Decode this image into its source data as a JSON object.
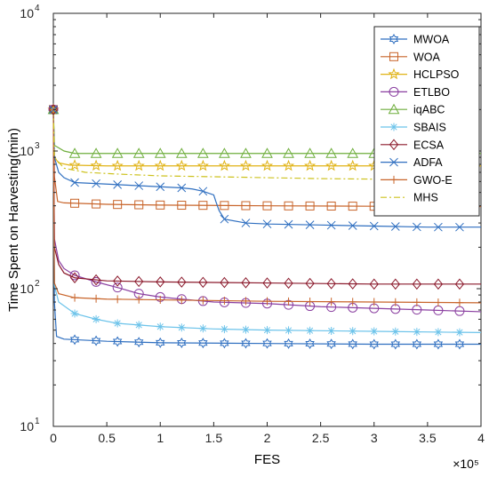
{
  "chart_data": {
    "type": "line",
    "title": "",
    "xlabel": "FES",
    "ylabel": "Time Spent on Harvesting(min)",
    "x_multiplier_label": "×10⁵",
    "x_scale": 100000,
    "xlim": [
      0,
      4
    ],
    "ylim": [
      10,
      10000
    ],
    "y_scale": "log",
    "x_ticks": [
      0,
      0.5,
      1,
      1.5,
      2,
      2.5,
      3,
      3.5,
      4
    ],
    "x_tick_labels": [
      "0",
      "0.5",
      "1",
      "1.5",
      "2",
      "2.5",
      "3",
      "3.5",
      "4"
    ],
    "y_ticks": [
      10,
      100,
      1000,
      10000
    ],
    "y_tick_labels": [
      {
        "base": "10",
        "exp": "1"
      },
      {
        "base": "10",
        "exp": "2"
      },
      {
        "base": "10",
        "exp": "3"
      },
      {
        "base": "10",
        "exp": "4"
      }
    ],
    "grid": false,
    "legend": "top-right",
    "series": [
      {
        "name": "MWOA",
        "color": "#2f6fc0",
        "marker": "hexagram",
        "dash": "",
        "points": [
          [
            0,
            2000
          ],
          [
            0.01,
            80
          ],
          [
            0.03,
            45
          ],
          [
            0.1,
            43
          ],
          [
            0.5,
            41.5
          ],
          [
            1,
            40.5
          ],
          [
            2,
            40
          ],
          [
            3,
            39.5
          ],
          [
            4,
            39.5
          ]
        ]
      },
      {
        "name": "WOA",
        "color": "#c8642a",
        "marker": "square",
        "dash": "",
        "points": [
          [
            0,
            2000
          ],
          [
            0.01,
            650
          ],
          [
            0.04,
            430
          ],
          [
            0.1,
            420
          ],
          [
            0.5,
            410
          ],
          [
            1,
            405
          ],
          [
            2,
            400
          ],
          [
            3,
            397
          ],
          [
            4,
            395
          ]
        ]
      },
      {
        "name": "HCLPSO",
        "color": "#e0b316",
        "marker": "star",
        "dash": "",
        "points": [
          [
            0,
            2000
          ],
          [
            0.01,
            900
          ],
          [
            0.05,
            820
          ],
          [
            0.15,
            790
          ],
          [
            0.5,
            780
          ],
          [
            1,
            780
          ],
          [
            2,
            780
          ],
          [
            3,
            780
          ],
          [
            4,
            780
          ]
        ]
      },
      {
        "name": "ETLBO",
        "color": "#8a3fa0",
        "marker": "circle",
        "dash": "",
        "points": [
          [
            0,
            2000
          ],
          [
            0.01,
            230
          ],
          [
            0.05,
            160
          ],
          [
            0.1,
            140
          ],
          [
            0.2,
            125
          ],
          [
            0.4,
            112
          ],
          [
            0.6,
            102
          ],
          [
            0.8,
            92
          ],
          [
            1,
            87
          ],
          [
            1.2,
            84
          ],
          [
            1.5,
            80
          ],
          [
            2,
            78
          ],
          [
            2.5,
            74
          ],
          [
            3,
            72
          ],
          [
            3.5,
            70
          ],
          [
            4,
            68
          ]
        ]
      },
      {
        "name": "iqABC",
        "color": "#6fae3d",
        "marker": "triangle",
        "dash": "",
        "points": [
          [
            0,
            2000
          ],
          [
            0.01,
            1100
          ],
          [
            0.1,
            1000
          ],
          [
            0.2,
            960
          ],
          [
            1,
            960
          ],
          [
            2,
            960
          ],
          [
            3,
            960
          ],
          [
            4,
            960
          ]
        ]
      },
      {
        "name": "SBAIS",
        "color": "#6cc3ea",
        "marker": "asterisk",
        "dash": "",
        "points": [
          [
            0,
            2000
          ],
          [
            0.01,
            105
          ],
          [
            0.05,
            80
          ],
          [
            0.2,
            66
          ],
          [
            0.4,
            60
          ],
          [
            0.6,
            56
          ],
          [
            1,
            53
          ],
          [
            1.5,
            51
          ],
          [
            2,
            50
          ],
          [
            3,
            49
          ],
          [
            4,
            48
          ]
        ]
      },
      {
        "name": "ECSA",
        "color": "#8b1a2c",
        "marker": "diamond",
        "dash": "",
        "points": [
          [
            0,
            2000
          ],
          [
            0.01,
            200
          ],
          [
            0.05,
            150
          ],
          [
            0.1,
            130
          ],
          [
            0.2,
            120
          ],
          [
            0.5,
            114
          ],
          [
            1,
            112
          ],
          [
            2,
            110
          ],
          [
            3,
            108
          ],
          [
            4,
            108
          ]
        ]
      },
      {
        "name": "ADFA",
        "color": "#2f6fc0",
        "marker": "x",
        "dash": "",
        "points": [
          [
            0,
            2000
          ],
          [
            0.01,
            900
          ],
          [
            0.05,
            700
          ],
          [
            0.1,
            640
          ],
          [
            0.2,
            590
          ],
          [
            0.6,
            570
          ],
          [
            1.0,
            550
          ],
          [
            1.2,
            540
          ],
          [
            1.3,
            530
          ],
          [
            1.4,
            510
          ],
          [
            1.5,
            480
          ],
          [
            1.52,
            430
          ],
          [
            1.55,
            370
          ],
          [
            1.6,
            320
          ],
          [
            1.8,
            300
          ],
          [
            2,
            295
          ],
          [
            2.5,
            290
          ],
          [
            3,
            285
          ],
          [
            3.5,
            280
          ],
          [
            4,
            280
          ]
        ]
      },
      {
        "name": "GWO-E",
        "color": "#c8642a",
        "marker": "plus",
        "dash": "",
        "points": [
          [
            0,
            2000
          ],
          [
            0.01,
            110
          ],
          [
            0.05,
            92
          ],
          [
            0.2,
            86
          ],
          [
            0.5,
            84
          ],
          [
            1,
            83
          ],
          [
            2,
            81
          ],
          [
            3,
            80
          ],
          [
            4,
            79
          ]
        ]
      },
      {
        "name": "MHS",
        "color": "#cdc21e",
        "marker": "none",
        "dash": "7,3,2,3",
        "points": [
          [
            0,
            2000
          ],
          [
            0.01,
            900
          ],
          [
            0.1,
            750
          ],
          [
            0.3,
            700
          ],
          [
            0.6,
            680
          ],
          [
            1,
            660
          ],
          [
            1.5,
            650
          ],
          [
            2,
            640
          ],
          [
            2.5,
            630
          ],
          [
            3,
            625
          ],
          [
            3.5,
            620
          ],
          [
            4,
            620
          ]
        ]
      }
    ]
  }
}
